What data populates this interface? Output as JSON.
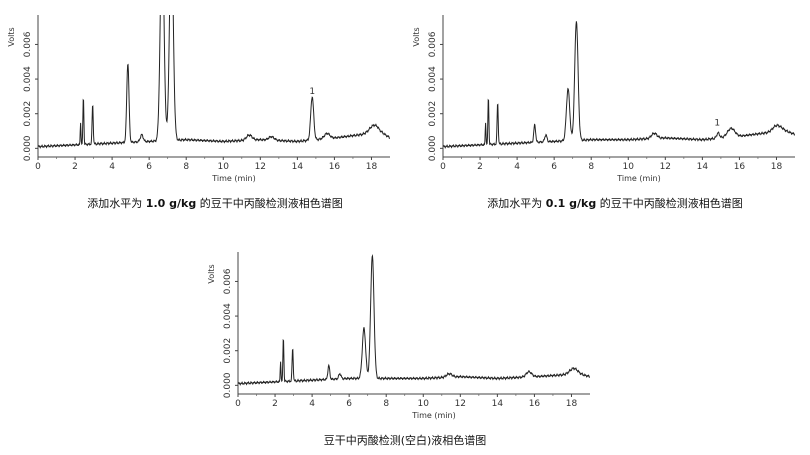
{
  "chart_data": [
    {
      "type": "line",
      "xlabel": "Time (min)",
      "ylabel": "Volts",
      "xlim": [
        0,
        19
      ],
      "ylim": [
        -0.0005,
        0.0077
      ],
      "xticks": [
        0,
        2,
        4,
        6,
        8,
        10,
        12,
        14,
        16,
        18
      ],
      "yticks": [
        0.0,
        0.002,
        0.004,
        0.006
      ],
      "ytick_labels": [
        "0.000",
        "0.002",
        "0.004",
        "0.006"
      ],
      "annotations": [
        {
          "text": "1",
          "x": 14.8,
          "y": 0.0029
        }
      ],
      "caption_parts": [
        {
          "text": "添加水平为 ",
          "bold": false
        },
        {
          "text": "1.0 g/kg",
          "bold": true
        },
        {
          "text": " 的豆干中丙酸检测液相色谱图",
          "bold": false
        }
      ],
      "series": [
        {
          "baseline": [
            [
              0,
              0.0001
            ],
            [
              2,
              0.0002
            ],
            [
              4,
              0.0003
            ],
            [
              6,
              0.0004
            ],
            [
              8,
              0.0005
            ],
            [
              10,
              0.0004
            ],
            [
              12,
              0.0005
            ],
            [
              14,
              0.0004
            ],
            [
              16,
              0.0006
            ],
            [
              17.5,
              0.0008
            ],
            [
              18.3,
              0.0011
            ],
            [
              19,
              0.0006
            ]
          ],
          "peaks": [
            [
              2.3,
              0.0013,
              0.02
            ],
            [
              2.45,
              0.0028,
              0.025
            ],
            [
              2.95,
              0.0023,
              0.03
            ],
            [
              4.85,
              0.0046,
              0.06
            ],
            [
              5.6,
              0.0004,
              0.08
            ],
            [
              6.7,
              0.012,
              0.1
            ],
            [
              7.2,
              0.012,
              0.1
            ],
            [
              11.4,
              0.0003,
              0.15
            ],
            [
              12.6,
              0.0002,
              0.15
            ],
            [
              14.8,
              0.0025,
              0.08
            ],
            [
              15.6,
              0.0003,
              0.15
            ],
            [
              18.1,
              0.0003,
              0.2
            ]
          ]
        }
      ]
    },
    {
      "type": "line",
      "xlabel": "Time (min)",
      "ylabel": "Volts",
      "xlim": [
        0,
        19
      ],
      "ylim": [
        -0.0005,
        0.0077
      ],
      "xticks": [
        0,
        2,
        4,
        6,
        8,
        10,
        12,
        14,
        16,
        18
      ],
      "yticks": [
        0.0,
        0.002,
        0.004,
        0.006
      ],
      "ytick_labels": [
        "0.000",
        "0.002",
        "0.004",
        "0.006"
      ],
      "annotations": [
        {
          "text": "1",
          "x": 14.8,
          "y": 0.0011
        }
      ],
      "caption_parts": [
        {
          "text": "添加水平为 ",
          "bold": false
        },
        {
          "text": "0.1 g/kg",
          "bold": true
        },
        {
          "text": " 的豆干中丙酸检测液相色谱图",
          "bold": false
        }
      ],
      "series": [
        {
          "baseline": [
            [
              0,
              0.0001
            ],
            [
              2,
              0.0002
            ],
            [
              4,
              0.0003
            ],
            [
              6,
              0.0004
            ],
            [
              8,
              0.0005
            ],
            [
              10,
              0.0005
            ],
            [
              12,
              0.0006
            ],
            [
              14,
              0.0005
            ],
            [
              16,
              0.0007
            ],
            [
              17.5,
              0.0009
            ],
            [
              18.3,
              0.0011
            ],
            [
              19,
              0.0008
            ]
          ],
          "peaks": [
            [
              2.3,
              0.0013,
              0.02
            ],
            [
              2.45,
              0.0028,
              0.025
            ],
            [
              2.95,
              0.0024,
              0.03
            ],
            [
              4.95,
              0.001,
              0.05
            ],
            [
              5.55,
              0.0004,
              0.06
            ],
            [
              6.75,
              0.003,
              0.09
            ],
            [
              7.2,
              0.0069,
              0.09
            ],
            [
              11.4,
              0.0003,
              0.15
            ],
            [
              14.85,
              0.0003,
              0.08
            ],
            [
              15.55,
              0.0005,
              0.2
            ],
            [
              18.0,
              0.0003,
              0.2
            ]
          ]
        }
      ]
    },
    {
      "type": "line",
      "xlabel": "Time (min)",
      "ylabel": "Volts",
      "xlim": [
        0,
        19
      ],
      "ylim": [
        -0.0005,
        0.0077
      ],
      "xticks": [
        0,
        2,
        4,
        6,
        8,
        10,
        12,
        14,
        16,
        18
      ],
      "yticks": [
        0.0,
        0.002,
        0.004,
        0.006
      ],
      "ytick_labels": [
        "0.000",
        "0.002",
        "0.004",
        "0.006"
      ],
      "annotations": [],
      "caption_parts": [
        {
          "text": "豆干中丙酸检测(空白)液相色谱图",
          "bold": false
        }
      ],
      "series": [
        {
          "baseline": [
            [
              0,
              0.0001
            ],
            [
              2,
              0.0002
            ],
            [
              4,
              0.0003
            ],
            [
              6,
              0.0004
            ],
            [
              8,
              0.0004
            ],
            [
              10,
              0.0004
            ],
            [
              12,
              0.0005
            ],
            [
              14,
              0.0004
            ],
            [
              16,
              0.0005
            ],
            [
              17.5,
              0.0006
            ],
            [
              18.3,
              0.0007
            ],
            [
              19,
              0.0005
            ]
          ],
          "peaks": [
            [
              2.3,
              0.0012,
              0.02
            ],
            [
              2.45,
              0.0026,
              0.025
            ],
            [
              2.95,
              0.0019,
              0.03
            ],
            [
              4.9,
              0.0008,
              0.05
            ],
            [
              5.5,
              0.0003,
              0.06
            ],
            [
              6.8,
              0.0029,
              0.09
            ],
            [
              7.25,
              0.0071,
              0.09
            ],
            [
              11.4,
              0.0002,
              0.15
            ],
            [
              15.7,
              0.0003,
              0.15
            ],
            [
              18.1,
              0.0003,
              0.2
            ]
          ]
        }
      ]
    }
  ]
}
